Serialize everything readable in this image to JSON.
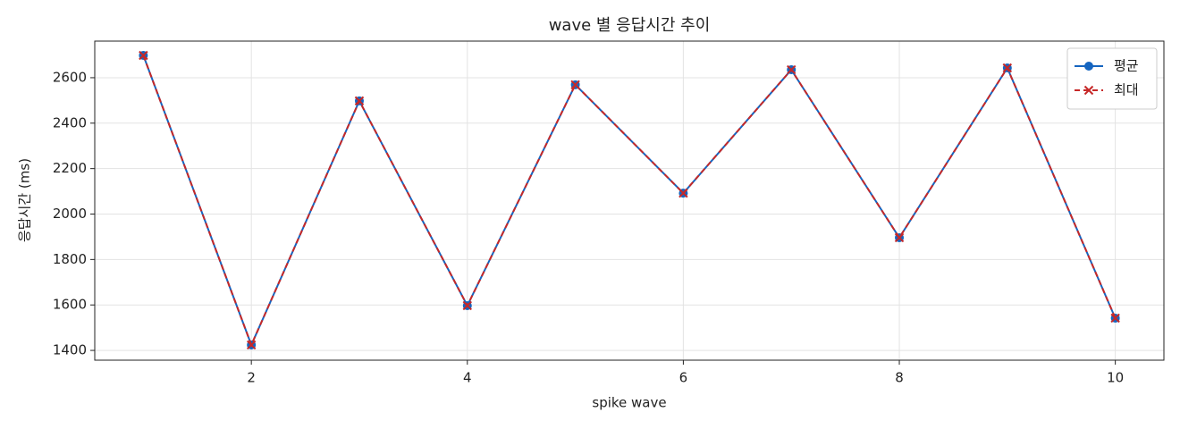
{
  "chart_data": {
    "type": "line",
    "title": "wave 별 응답시간 추이",
    "x_label": "spike wave",
    "y_label": "응답시간 (ms)",
    "x": [
      1,
      2,
      3,
      4,
      5,
      6,
      7,
      8,
      9,
      10
    ],
    "series": [
      {
        "name": "평균",
        "color": "#1565c0",
        "marker": "o",
        "dashed": false,
        "values": [
          2698,
          1424,
          2498,
          1597,
          2569,
          2092,
          2635,
          1896,
          2643,
          1542
        ]
      },
      {
        "name": "최대",
        "color": "#c62828",
        "marker": "x",
        "dashed": true,
        "values": [
          2698,
          1424,
          2498,
          1597,
          2569,
          2092,
          2635,
          1896,
          2643,
          1542
        ]
      }
    ],
    "xlim": [
      0.55,
      10.45
    ],
    "xticks": [
      2,
      4,
      6,
      8,
      10
    ],
    "ylim": [
      1357,
      2761
    ],
    "yticks": [
      1400,
      1600,
      1800,
      2000,
      2200,
      2400,
      2600
    ],
    "grid": true,
    "legend": "upper right"
  }
}
